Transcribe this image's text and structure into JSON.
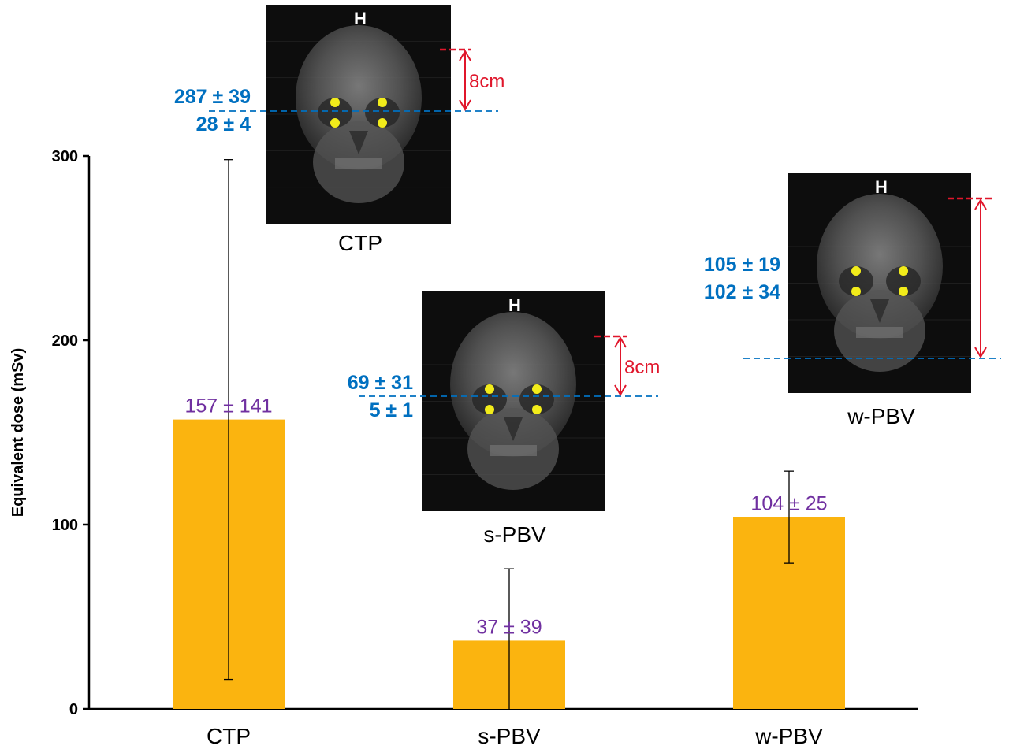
{
  "chart_data": {
    "type": "bar",
    "title": "",
    "xlabel": "",
    "ylabel": "Equivalent dose (mSv)",
    "ylim": [
      0,
      300
    ],
    "yticks": [
      0,
      100,
      200,
      300
    ],
    "categories": [
      "CTP",
      "s-PBV",
      "w-PBV"
    ],
    "values": [
      157,
      37,
      104
    ],
    "errors": [
      141,
      39,
      25
    ],
    "bar_labels": [
      "157 ± 141",
      "37 ± 39",
      "104 ± 25"
    ],
    "grid": false,
    "legend": "none"
  },
  "colors": {
    "bar": "#FBB40F",
    "bar_label": "#7030A0",
    "image_value": "#0070C0",
    "distance_marker": "#E0162B",
    "eye_point": "#F2EC1A",
    "axis": "#000000"
  },
  "insets": [
    {
      "name": "CTP",
      "caption": "CTP",
      "orientation_label": "H",
      "distance_label": "8cm",
      "values": [
        "287 ± 39",
        "28 ± 4"
      ]
    },
    {
      "name": "s-PBV",
      "caption": "s-PBV",
      "orientation_label": "H",
      "distance_label": "8cm",
      "values": [
        "69 ± 31",
        "5 ± 1"
      ]
    },
    {
      "name": "w-PBV",
      "caption": "w-PBV",
      "orientation_label": "H",
      "distance_label": "",
      "values": [
        "105 ± 19",
        "102 ± 34"
      ]
    }
  ]
}
